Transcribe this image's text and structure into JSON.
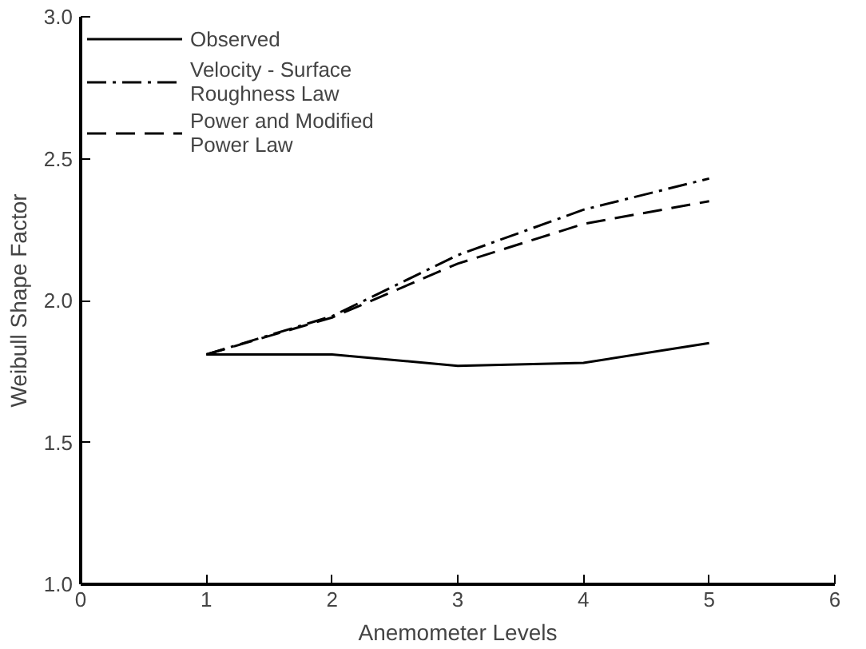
{
  "chart_data": {
    "type": "line",
    "xlabel": "Anemometer Levels",
    "ylabel": "Weibull Shape Factor",
    "x": [
      1,
      2,
      3,
      4,
      5
    ],
    "series": [
      {
        "name": "Observed",
        "color": "#000000",
        "line_style": "solid",
        "values": [
          1.81,
          1.81,
          1.77,
          1.78,
          1.85
        ]
      },
      {
        "name": "Velocity - Surface\nRoughness Law",
        "color": "#000000",
        "line_style": "dashdot",
        "values": [
          1.81,
          1.945,
          2.16,
          2.32,
          2.43
        ]
      },
      {
        "name": "Power and Modified\nPower Law",
        "color": "#000000",
        "line_style": "dashed",
        "values": [
          1.81,
          1.94,
          2.13,
          2.27,
          2.35
        ]
      }
    ],
    "xlim": [
      0,
      6
    ],
    "xticks": [
      0,
      1,
      2,
      3,
      4,
      5,
      6
    ],
    "ylim": [
      1.0,
      3.0
    ],
    "yticks": [
      {
        "value": 1.0,
        "label": "1.0"
      },
      {
        "value": 1.5,
        "label": "1.5"
      },
      {
        "value": 2.0,
        "label": "2.0"
      },
      {
        "value": 2.5,
        "label": "2.5"
      },
      {
        "value": 3.0,
        "label": "3.0"
      }
    ],
    "grid": false,
    "legend": "top left",
    "marker": "none"
  }
}
